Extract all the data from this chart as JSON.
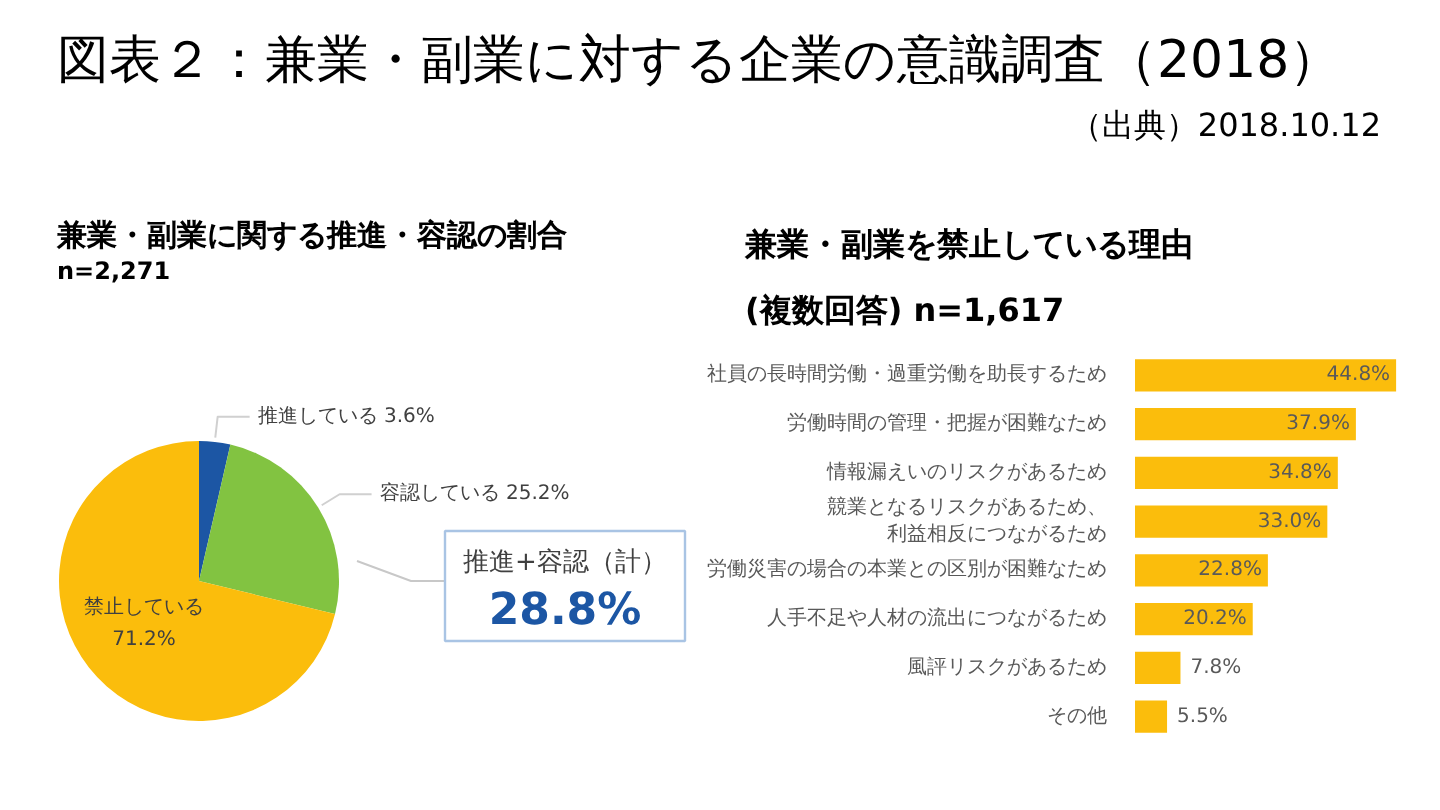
{
  "chart_data": [
    {
      "type": "other",
      "title": "図表２：兼業・副業に対する企業の意識調査（2018）",
      "annotations": [
        "（出典）2018.10.12"
      ]
    },
    {
      "type": "pie",
      "title": "兼業・副業に関する推進・容認の割合",
      "subtitle": "n=2,271",
      "categories": [
        "推進している",
        "容認している",
        "禁止している"
      ],
      "values": [
        3.6,
        25.2,
        71.2
      ],
      "colors": [
        "#1c56a4",
        "#82c341",
        "#fbbd0c"
      ],
      "value_labels": [
        "3.6%",
        "25.2%",
        "71.2%"
      ],
      "annotations": [
        "推進+容認（計）",
        "28.8%"
      ]
    },
    {
      "type": "bar",
      "orientation": "horizontal",
      "title": "兼業・副業を禁止している理由",
      "subtitle": "(複数回答) n=1,617",
      "categories": [
        "社員の長時間労働・過重労働を助長するため",
        "労働時間の管理・把握が困難なため",
        "情報漏えいのリスクがあるため",
        "競業となるリスクがあるため、利益相反につながるため",
        "労働災害の場合の本業との区別が困難なため",
        "人手不足や人材の流出につながるため",
        "風評リスクがあるため",
        "その他"
      ],
      "values": [
        44.8,
        37.9,
        34.8,
        33.0,
        22.8,
        20.2,
        7.8,
        5.5
      ],
      "color": "#fbbd0c",
      "value_labels": [
        "44.8%",
        "37.9%",
        "34.8%",
        "33.0%",
        "22.8%",
        "20.2%",
        "7.8%",
        "5.5%"
      ],
      "tick_labels": "y"
    }
  ]
}
